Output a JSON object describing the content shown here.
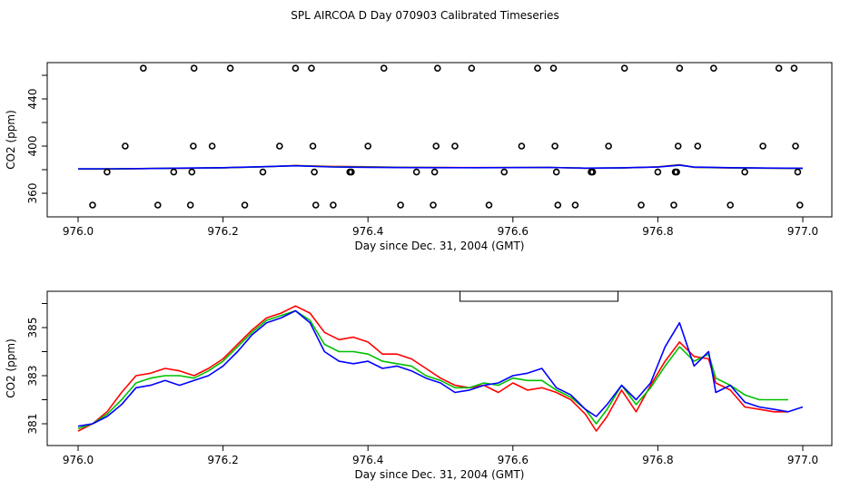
{
  "page": {
    "title": "SPL AIRCOA D  Day 070903  Calibrated Timeseries"
  },
  "chart_data": [
    {
      "type": "scatter",
      "name": "top",
      "xlabel": "Day since Dec. 31, 2004 (GMT)",
      "ylabel": "CO2 (ppm)",
      "xlim": [
        976.0,
        977.0
      ],
      "ylim": [
        345,
        465
      ],
      "xticks": [
        976.0,
        976.2,
        976.4,
        976.6,
        976.8,
        977.0
      ],
      "xtick_labels": [
        "976.0",
        "976.2",
        "976.4",
        "976.6",
        "976.8",
        "977.0"
      ],
      "yticks": [
        360,
        380,
        400,
        420,
        440,
        460
      ],
      "ytick_labels": [
        "360",
        "",
        "400",
        "",
        "440",
        ""
      ],
      "points": [
        {
          "x": 976.02,
          "y": 350
        },
        {
          "x": 976.04,
          "y": 378
        },
        {
          "x": 976.065,
          "y": 400
        },
        {
          "x": 976.09,
          "y": 466
        },
        {
          "x": 976.11,
          "y": 350
        },
        {
          "x": 976.132,
          "y": 378
        },
        {
          "x": 976.155,
          "y": 350
        },
        {
          "x": 976.157,
          "y": 378
        },
        {
          "x": 976.159,
          "y": 400
        },
        {
          "x": 976.16,
          "y": 466
        },
        {
          "x": 976.185,
          "y": 400
        },
        {
          "x": 976.21,
          "y": 466
        },
        {
          "x": 976.23,
          "y": 350
        },
        {
          "x": 976.255,
          "y": 378
        },
        {
          "x": 976.278,
          "y": 400
        },
        {
          "x": 976.3,
          "y": 466
        },
        {
          "x": 976.322,
          "y": 466
        },
        {
          "x": 976.324,
          "y": 400
        },
        {
          "x": 976.326,
          "y": 378
        },
        {
          "x": 976.328,
          "y": 350
        },
        {
          "x": 976.352,
          "y": 350
        },
        {
          "x": 976.375,
          "y": 378
        },
        {
          "x": 976.377,
          "y": 378
        },
        {
          "x": 976.4,
          "y": 400
        },
        {
          "x": 976.422,
          "y": 466
        },
        {
          "x": 976.445,
          "y": 350
        },
        {
          "x": 976.467,
          "y": 378
        },
        {
          "x": 976.49,
          "y": 350
        },
        {
          "x": 976.492,
          "y": 378
        },
        {
          "x": 976.494,
          "y": 400
        },
        {
          "x": 976.496,
          "y": 466
        },
        {
          "x": 976.52,
          "y": 400
        },
        {
          "x": 976.543,
          "y": 466
        },
        {
          "x": 976.567,
          "y": 350
        },
        {
          "x": 976.588,
          "y": 378
        },
        {
          "x": 976.612,
          "y": 400
        },
        {
          "x": 976.634,
          "y": 466
        },
        {
          "x": 976.656,
          "y": 466
        },
        {
          "x": 976.658,
          "y": 400
        },
        {
          "x": 976.66,
          "y": 378
        },
        {
          "x": 976.662,
          "y": 350
        },
        {
          "x": 976.686,
          "y": 350
        },
        {
          "x": 976.708,
          "y": 378
        },
        {
          "x": 976.71,
          "y": 378
        },
        {
          "x": 976.732,
          "y": 400
        },
        {
          "x": 976.754,
          "y": 466
        },
        {
          "x": 976.777,
          "y": 350
        },
        {
          "x": 976.8,
          "y": 378
        },
        {
          "x": 976.822,
          "y": 350
        },
        {
          "x": 976.824,
          "y": 378
        },
        {
          "x": 976.826,
          "y": 378
        },
        {
          "x": 976.828,
          "y": 400
        },
        {
          "x": 976.83,
          "y": 466
        },
        {
          "x": 976.855,
          "y": 400
        },
        {
          "x": 976.877,
          "y": 466
        },
        {
          "x": 976.9,
          "y": 350
        },
        {
          "x": 976.92,
          "y": 378
        },
        {
          "x": 976.945,
          "y": 400
        },
        {
          "x": 976.967,
          "y": 466
        },
        {
          "x": 976.988,
          "y": 466
        },
        {
          "x": 976.99,
          "y": 400
        },
        {
          "x": 976.993,
          "y": 378
        },
        {
          "x": 976.996,
          "y": 350
        }
      ],
      "series": [
        {
          "name": "red",
          "color": "#ff0000",
          "x": [
            976.0,
            976.05,
            976.1,
            976.15,
            976.2,
            976.25,
            976.3,
            976.35,
            976.4,
            976.45,
            976.5,
            976.55,
            976.6,
            976.65,
            976.7,
            976.75,
            976.8,
            976.83,
            976.85,
            976.9,
            976.95,
            977.0
          ],
          "values": [
            380.5,
            380.5,
            381.0,
            381.2,
            381.6,
            382.3,
            383.5,
            382.8,
            382.5,
            382.0,
            381.9,
            381.8,
            381.8,
            381.9,
            381.2,
            381.5,
            382.4,
            384.2,
            382.0,
            381.5,
            381.3,
            381.0
          ]
        },
        {
          "name": "green",
          "color": "#00c000",
          "x": [
            976.0,
            976.05,
            976.1,
            976.15,
            976.2,
            976.25,
            976.3,
            976.35,
            976.4,
            976.45,
            976.5,
            976.55,
            976.6,
            976.65,
            976.7,
            976.75,
            976.8,
            976.83,
            976.85,
            976.9,
            976.95,
            977.0
          ],
          "values": [
            380.6,
            380.7,
            381.0,
            381.3,
            381.6,
            382.4,
            383.4,
            382.5,
            382.2,
            381.9,
            381.8,
            381.7,
            381.8,
            381.9,
            381.3,
            381.5,
            382.3,
            384.0,
            382.1,
            381.6,
            381.3,
            381.1
          ]
        },
        {
          "name": "blue",
          "color": "#0000ff",
          "x": [
            976.0,
            976.05,
            976.1,
            976.15,
            976.2,
            976.25,
            976.3,
            976.35,
            976.4,
            976.45,
            976.5,
            976.55,
            976.6,
            976.65,
            976.7,
            976.75,
            976.8,
            976.83,
            976.85,
            976.9,
            976.95,
            977.0
          ],
          "values": [
            380.7,
            380.8,
            381.0,
            381.4,
            381.7,
            382.5,
            383.3,
            382.3,
            382.0,
            381.8,
            381.7,
            381.7,
            381.8,
            381.9,
            381.3,
            381.6,
            382.2,
            383.8,
            382.2,
            381.7,
            381.4,
            381.2
          ]
        }
      ]
    },
    {
      "type": "line",
      "name": "bottom",
      "xlabel": "Day since Dec. 31, 2004 (GMT)",
      "ylabel": "CO2 (ppm)",
      "xlim": [
        976.0,
        977.0
      ],
      "ylim": [
        380.5,
        386.2
      ],
      "xticks": [
        976.0,
        976.2,
        976.4,
        976.6,
        976.8,
        977.0
      ],
      "xtick_labels": [
        "976.0",
        "976.2",
        "976.4",
        "976.6",
        "976.8",
        "977.0"
      ],
      "yticks": [
        381,
        382,
        383,
        384,
        385,
        386
      ],
      "ytick_labels": [
        "381",
        "",
        "383",
        "",
        "385",
        ""
      ],
      "legend_box": {
        "from_x": 976.527,
        "to_x": 976.745
      },
      "series": [
        {
          "name": "red",
          "color": "#ff0000",
          "x": [
            976.0,
            976.02,
            976.04,
            976.06,
            976.08,
            976.1,
            976.12,
            976.14,
            976.16,
            976.18,
            976.2,
            976.22,
            976.24,
            976.26,
            976.28,
            976.3,
            976.32,
            976.34,
            976.36,
            976.38,
            976.4,
            976.42,
            976.44,
            976.46,
            976.48,
            976.5,
            976.52,
            976.54,
            976.56,
            976.58,
            976.6,
            976.62,
            976.64,
            976.66,
            976.68,
            976.7,
            976.715,
            976.73,
            976.75,
            976.77,
            976.79,
            976.81,
            976.83,
            976.85,
            976.87,
            976.88,
            976.9,
            976.92,
            976.94,
            976.96,
            976.98
          ],
          "values": [
            380.7,
            381.0,
            381.5,
            382.3,
            383.0,
            383.1,
            383.3,
            383.2,
            383.0,
            383.3,
            383.7,
            384.3,
            384.9,
            385.4,
            385.6,
            385.9,
            385.6,
            384.8,
            384.5,
            384.6,
            384.4,
            383.9,
            383.9,
            383.7,
            383.3,
            382.9,
            382.6,
            382.5,
            382.6,
            382.3,
            382.7,
            382.4,
            382.5,
            382.3,
            382.0,
            381.4,
            380.7,
            381.3,
            382.4,
            381.5,
            382.6,
            383.6,
            384.4,
            383.8,
            383.7,
            382.7,
            382.4,
            381.7,
            381.6,
            381.5,
            381.5
          ]
        },
        {
          "name": "green",
          "color": "#00c000",
          "x": [
            976.0,
            976.02,
            976.04,
            976.06,
            976.08,
            976.1,
            976.12,
            976.14,
            976.16,
            976.18,
            976.2,
            976.22,
            976.24,
            976.26,
            976.28,
            976.3,
            976.32,
            976.34,
            976.36,
            976.38,
            976.4,
            976.42,
            976.44,
            976.46,
            976.48,
            976.5,
            976.52,
            976.54,
            976.56,
            976.58,
            976.6,
            976.62,
            976.64,
            976.66,
            976.68,
            976.7,
            976.715,
            976.73,
            976.75,
            976.77,
            976.79,
            976.81,
            976.83,
            976.85,
            976.87,
            976.88,
            976.9,
            976.92,
            976.94,
            976.96,
            976.98
          ],
          "values": [
            380.8,
            381.0,
            381.4,
            382.0,
            382.7,
            382.9,
            383.0,
            383.0,
            382.9,
            383.2,
            383.6,
            384.2,
            384.8,
            385.3,
            385.5,
            385.7,
            385.3,
            384.3,
            384.0,
            384.0,
            383.9,
            383.6,
            383.5,
            383.4,
            383.0,
            382.8,
            382.5,
            382.5,
            382.7,
            382.6,
            382.9,
            382.8,
            382.8,
            382.4,
            382.1,
            381.6,
            381.0,
            381.6,
            382.6,
            381.8,
            382.5,
            383.4,
            384.2,
            383.6,
            383.9,
            382.9,
            382.6,
            382.2,
            382.0,
            382.0,
            382.0
          ]
        },
        {
          "name": "blue",
          "color": "#0000ff",
          "x": [
            976.0,
            976.02,
            976.04,
            976.06,
            976.08,
            976.1,
            976.12,
            976.14,
            976.16,
            976.18,
            976.2,
            976.22,
            976.24,
            976.26,
            976.28,
            976.3,
            976.32,
            976.34,
            976.36,
            976.38,
            976.4,
            976.42,
            976.44,
            976.46,
            976.48,
            976.5,
            976.52,
            976.54,
            976.56,
            976.58,
            976.6,
            976.62,
            976.64,
            976.66,
            976.68,
            976.7,
            976.715,
            976.73,
            976.75,
            976.77,
            976.79,
            976.81,
            976.83,
            976.85,
            976.87,
            976.88,
            976.9,
            976.92,
            976.94,
            976.96,
            976.98,
            977.0
          ],
          "values": [
            380.9,
            381.0,
            381.3,
            381.8,
            382.5,
            382.6,
            382.8,
            382.6,
            382.8,
            383.0,
            383.4,
            384.0,
            384.7,
            385.2,
            385.4,
            385.7,
            385.2,
            384.0,
            383.6,
            383.5,
            383.6,
            383.3,
            383.4,
            383.2,
            382.9,
            382.7,
            382.3,
            382.4,
            382.6,
            382.7,
            383.0,
            383.1,
            383.3,
            382.5,
            382.2,
            381.6,
            381.3,
            381.8,
            382.6,
            382.0,
            382.7,
            384.2,
            385.2,
            383.4,
            384.0,
            382.3,
            382.6,
            381.9,
            381.7,
            381.6,
            381.5,
            381.7
          ]
        }
      ]
    }
  ]
}
